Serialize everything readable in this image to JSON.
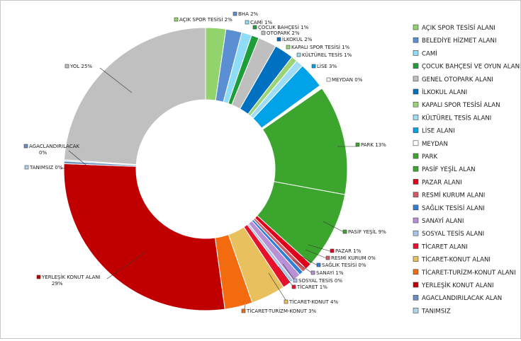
{
  "chart_data": {
    "type": "pie",
    "variant": "donut",
    "legend_position": "right",
    "start_angle_deg": 0,
    "slices": [
      {
        "name": "AÇIK SPOR TESİSİ ALANI",
        "value": 2.4,
        "color": "#92d36e",
        "label": "AÇIK SPOR TESİSİ 2%"
      },
      {
        "name": "BELEDİYE HİZMET ALANI",
        "value": 1.9,
        "color": "#5b8fd4",
        "label": "BHA 2%"
      },
      {
        "name": "CAMİ",
        "value": 1.2,
        "color": "#8fdcf7",
        "label": "CAMİ 1%"
      },
      {
        "name": "ÇOCUK BAHÇESİ VE OYUN ALANI",
        "value": 0.9,
        "color": "#1d9e3a",
        "label": "ÇOCUK BAHÇESİ 1%"
      },
      {
        "name": "GENEL OTOPARK ALANI",
        "value": 2.2,
        "color": "#bfbfbf",
        "label": "OTOPARK 2%"
      },
      {
        "name": "İLKOKUL ALANI",
        "value": 2.3,
        "color": "#0070c0",
        "label": "İLKOKUL 2%"
      },
      {
        "name": "KAPALI SPOR TESİSİ ALAN",
        "value": 0.7,
        "color": "#9bd477",
        "label": "KAPALI SPOR TESİSİ 1%"
      },
      {
        "name": "KÜLTÜREL TESİS ALANI",
        "value": 0.9,
        "color": "#9fdcf5",
        "label": "KÜLTÜREL TESİS 1%"
      },
      {
        "name": "LİSE ALANI",
        "value": 3.1,
        "color": "#00a2e8",
        "label": "LİSE 3%"
      },
      {
        "name": "MEYDAN",
        "value": 0.4,
        "color": "#ffffff",
        "label": "MEYDAN 0%"
      },
      {
        "name": "PARK",
        "value": 13.1,
        "color": "#3ca52d",
        "label": "PARK 13%"
      },
      {
        "name": "PASİF YEŞİL ALAN",
        "value": 9.2,
        "color": "#3ca52d",
        "label": "PASİF YEŞİL 9%"
      },
      {
        "name": "PAZAR ALANI",
        "value": 0.8,
        "color": "#e0001a",
        "label": "PAZAR  1%"
      },
      {
        "name": "RESMİ KURUM ALANI",
        "value": 0.5,
        "color": "#d25a67",
        "label": "RESMİ KURUM 0%"
      },
      {
        "name": "SAĞLIK TESİSİ ALANI",
        "value": 0.5,
        "color": "#2f7ed8",
        "label": "SAĞLIK TESİSİ 0%"
      },
      {
        "name": "SANAYİ ALANI",
        "value": 1.0,
        "color": "#b98fd6",
        "label": "SANAYİ  1%"
      },
      {
        "name": "SOSYAL TESİS ALANI",
        "value": 0.4,
        "color": "#a9c4ea",
        "label": "SOSYAL TESİS 0%"
      },
      {
        "name": "TİCARET ALANI",
        "value": 1.0,
        "color": "#e8112d",
        "label": "TİCARET 1%"
      },
      {
        "name": "TİCARET-KONUT ALANI",
        "value": 4.1,
        "color": "#e8c05e",
        "label": "TİCARET-KONUT 4%"
      },
      {
        "name": "TİCARET-TURİZM-KONUT ALANI",
        "value": 3.3,
        "color": "#f26b0f",
        "label": "TİCARET-TURİZM-KONUT 3%"
      },
      {
        "name": "YERLEŞİK KONUT ALANI",
        "value": 29.0,
        "color": "#c00000",
        "label": "YERLEŞİK KONUT ALANI\n29%"
      },
      {
        "name": "AGACLANDIRILACAK ALAN",
        "value": 0.3,
        "color": "#6c8ebf",
        "label": "AGACLANDIRILACAK\n0%"
      },
      {
        "name": "TANIMSIZ",
        "value": 0.15,
        "color": "#aed6e8",
        "label": "TANIMSIZ 0%"
      },
      {
        "name": "YOL",
        "value": 25.0,
        "color": "#c0c0c0",
        "label": "YOL 25%"
      }
    ],
    "legend_entries": [
      {
        "name": "AÇIK SPOR TESİSİ ALANI",
        "color": "#92d36e"
      },
      {
        "name": "BELEDİYE HİZMET ALANI",
        "color": "#5b8fd4"
      },
      {
        "name": "CAMİ",
        "color": "#8fdcf7"
      },
      {
        "name": "ÇOCUK BAHÇESİ VE OYUN ALANI",
        "color": "#1d9e3a"
      },
      {
        "name": "GENEL OTOPARK ALANI",
        "color": "#bfbfbf"
      },
      {
        "name": "İLKOKUL ALANI",
        "color": "#0070c0"
      },
      {
        "name": "KAPALI SPOR TESİSİ ALAN",
        "color": "#9bd477"
      },
      {
        "name": "KÜLTÜREL TESİS ALANI",
        "color": "#9fdcf5"
      },
      {
        "name": "LİSE ALANI",
        "color": "#00a2e8"
      },
      {
        "name": "MEYDAN",
        "color": "#ffffff"
      },
      {
        "name": "PARK",
        "color": "#3ca52d"
      },
      {
        "name": "PASİF YEŞİL ALAN",
        "color": "#3ca52d"
      },
      {
        "name": "PAZAR ALANI",
        "color": "#e0001a"
      },
      {
        "name": "RESMİ KURUM ALANI",
        "color": "#d25a67"
      },
      {
        "name": "SAĞLIK TESİSİ ALANI",
        "color": "#2f7ed8"
      },
      {
        "name": "SANAYİ ALANI",
        "color": "#b98fd6"
      },
      {
        "name": "SOSYAL TESİS ALANI",
        "color": "#a9c4ea"
      },
      {
        "name": "TİCARET ALANI",
        "color": "#e8112d"
      },
      {
        "name": "TİCARET-KONUT ALANI",
        "color": "#e8c05e"
      },
      {
        "name": "TİCARET-TURİZM-KONUT ALANI",
        "color": "#f26b0f"
      },
      {
        "name": "YERLEŞİK KONUT ALANI",
        "color": "#c00000"
      },
      {
        "name": "AGACLANDIRILACAK ALAN",
        "color": "#6c8ebf"
      },
      {
        "name": "TANIMSIZ",
        "color": "#aed6e8"
      }
    ]
  }
}
